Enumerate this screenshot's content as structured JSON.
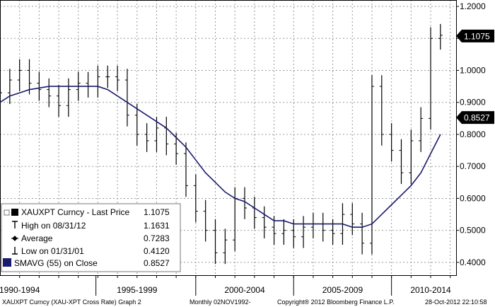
{
  "chart_data": {
    "type": "line",
    "series": [
      {
        "name": "XAUXPT Curncy - Last Price",
        "style": "bars",
        "color": "#000000",
        "x": [
          1990.0,
          1990.5,
          1991.0,
          1991.5,
          1992.0,
          1992.5,
          1993.0,
          1993.5,
          1994.0,
          1994.5,
          1995.0,
          1995.5,
          1996.0,
          1996.5,
          1997.0,
          1997.5,
          1998.0,
          1998.5,
          1999.0,
          1999.5,
          2000.0,
          2000.5,
          2001.0,
          2001.5,
          2002.0,
          2002.5,
          2003.0,
          2003.5,
          2004.0,
          2004.5,
          2005.0,
          2005.5,
          2006.0,
          2006.5,
          2007.0,
          2007.5,
          2008.0,
          2008.5,
          2009.0,
          2009.5,
          2010.0,
          2010.5,
          2011.0,
          2011.5,
          2012.0,
          2012.5
        ],
        "values": [
          0.93,
          0.97,
          1.0,
          0.96,
          0.94,
          0.92,
          0.89,
          0.94,
          0.96,
          0.95,
          0.98,
          0.98,
          0.97,
          0.86,
          0.8,
          0.78,
          0.82,
          0.77,
          0.74,
          0.64,
          0.56,
          0.5,
          0.43,
          0.47,
          0.6,
          0.57,
          0.54,
          0.51,
          0.49,
          0.5,
          0.48,
          0.51,
          0.52,
          0.5,
          0.49,
          0.55,
          0.52,
          0.46,
          0.95,
          0.8,
          0.75,
          0.68,
          0.78,
          0.85,
          1.1,
          1.11
        ],
        "last": 1.1075
      },
      {
        "name": "SMAVG (55) on Close",
        "style": "line",
        "color": "#1a1a6e",
        "x": [
          1990.0,
          1990.5,
          1991.0,
          1991.5,
          1992.0,
          1992.5,
          1993.0,
          1993.5,
          1994.0,
          1994.5,
          1995.0,
          1995.5,
          1996.0,
          1996.5,
          1997.0,
          1997.5,
          1998.0,
          1998.5,
          1999.0,
          1999.5,
          2000.0,
          2000.5,
          2001.0,
          2001.5,
          2002.0,
          2002.5,
          2003.0,
          2003.5,
          2004.0,
          2004.5,
          2005.0,
          2005.5,
          2006.0,
          2006.5,
          2007.0,
          2007.5,
          2008.0,
          2008.5,
          2009.0,
          2009.5,
          2010.0,
          2010.5,
          2011.0,
          2011.5,
          2012.0,
          2012.5
        ],
        "values": [
          0.9,
          0.92,
          0.93,
          0.94,
          0.945,
          0.95,
          0.95,
          0.95,
          0.95,
          0.95,
          0.95,
          0.94,
          0.92,
          0.9,
          0.88,
          0.86,
          0.84,
          0.82,
          0.79,
          0.76,
          0.72,
          0.68,
          0.65,
          0.62,
          0.6,
          0.59,
          0.57,
          0.55,
          0.53,
          0.53,
          0.52,
          0.52,
          0.52,
          0.52,
          0.52,
          0.52,
          0.51,
          0.51,
          0.52,
          0.55,
          0.58,
          0.61,
          0.64,
          0.68,
          0.74,
          0.8
        ],
        "last": 0.8527
      }
    ],
    "ylim": [
      0.36,
      1.22
    ],
    "xlim": [
      1990.0,
      2013.3
    ],
    "yticks": [
      "1.2000",
      "1.1000",
      "1.0000",
      "0.9000",
      "0.8000",
      "0.7000",
      "0.6000",
      "0.5000",
      "0.4000"
    ],
    "yticks_values": [
      1.2,
      1.1,
      1.0,
      0.9,
      0.8,
      0.7,
      0.6,
      0.5,
      0.4
    ],
    "xticks": [
      "1990-1994",
      "1995-1999",
      "2000-2004",
      "2005-2009",
      "2010-2014"
    ],
    "xticks_centers": [
      1991.0,
      1997.0,
      2002.5,
      2007.5,
      2012.0
    ],
    "xdividers": [
      1994.9,
      2000.0,
      2005.0,
      2010.0
    ],
    "grid": true,
    "legend_position": "bottom-left",
    "legend": [
      {
        "label": "XAUXPT Curncy - Last Price",
        "value": "1.1075",
        "marker": "square-black"
      },
      {
        "label": "High on 08/31/12",
        "value": "1.1631",
        "marker": "high-tick"
      },
      {
        "label": "Average",
        "value": "0.7283",
        "marker": "average"
      },
      {
        "label": "Low on 01/31/01",
        "value": "0.4120",
        "marker": "low-tick"
      },
      {
        "label": "SMAVG (55) on Close",
        "value": "0.8527",
        "marker": "square-navy"
      }
    ],
    "price_badges": [
      {
        "label": "1.1075",
        "value": 1.1075
      },
      {
        "label": "0.8527",
        "value": 0.8527
      }
    ],
    "footer": {
      "left": "XAUXPT Curncy (XAU-XPT Cross Rate) Graph 2",
      "middle": "Monthly 02NOV1992-",
      "copyright": "Copyright® 2012 Bloomberg Finance L.P.",
      "timestamp": "28-Oct-2012 22:10:58"
    },
    "colors": {
      "price": "#000000",
      "sma": "#1a1a6e",
      "badge": "#000000",
      "grid": "#999999"
    }
  }
}
